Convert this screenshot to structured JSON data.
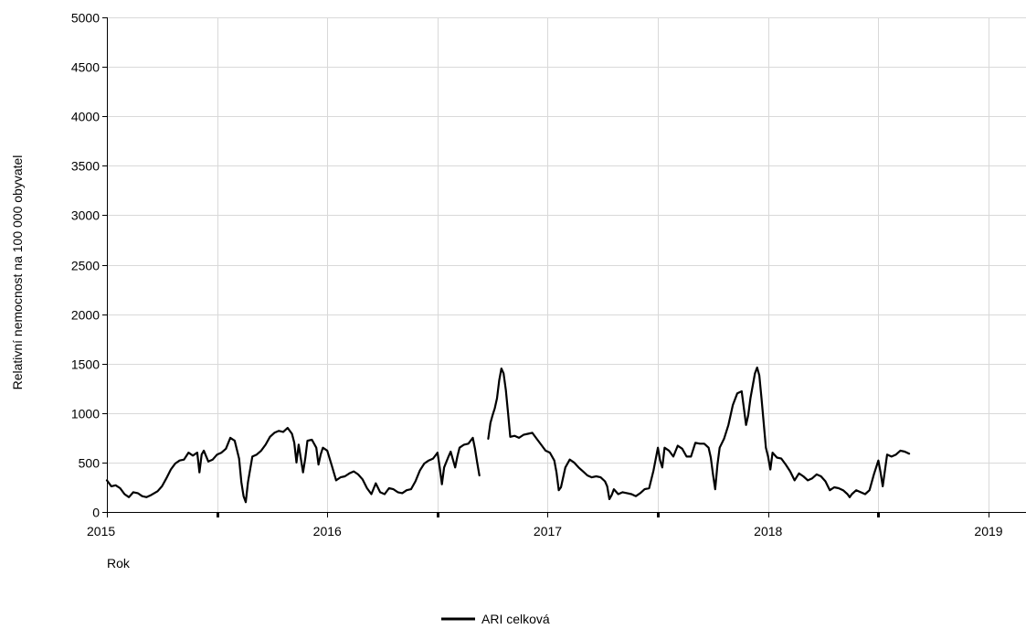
{
  "chart_data": {
    "type": "line",
    "xlabel": "Rok",
    "ylabel": "Relativní nemocnost na 100 000 obyvatel",
    "xlim": [
      2015,
      2019.17
    ],
    "ylim": [
      0,
      5000
    ],
    "y_ticks": [
      0,
      500,
      1000,
      1500,
      2000,
      2500,
      3000,
      3500,
      4000,
      4500,
      5000
    ],
    "x_ticks": [
      2015,
      2016,
      2017,
      2018,
      2019
    ],
    "grid": true,
    "legend": "bottom-center",
    "series": [
      {
        "name": "ARI celková",
        "color": "#000000",
        "segments": [
          [
            [
              2015.0,
              320
            ],
            [
              2015.02,
              260
            ],
            [
              2015.04,
              270
            ],
            [
              2015.06,
              240
            ],
            [
              2015.08,
              180
            ],
            [
              2015.1,
              150
            ],
            [
              2015.12,
              200
            ],
            [
              2015.14,
              190
            ],
            [
              2015.16,
              160
            ],
            [
              2015.18,
              150
            ],
            [
              2015.2,
              170
            ],
            [
              2015.23,
              210
            ],
            [
              2015.25,
              260
            ],
            [
              2015.27,
              340
            ],
            [
              2015.29,
              430
            ],
            [
              2015.31,
              490
            ],
            [
              2015.33,
              520
            ],
            [
              2015.35,
              530
            ],
            [
              2015.37,
              600
            ],
            [
              2015.39,
              570
            ],
            [
              2015.41,
              600
            ],
            [
              2015.42,
              400
            ],
            [
              2015.43,
              580
            ],
            [
              2015.44,
              620
            ],
            [
              2015.46,
              510
            ],
            [
              2015.48,
              530
            ],
            [
              2015.5,
              580
            ],
            [
              2015.52,
              600
            ],
            [
              2015.54,
              640
            ],
            [
              2015.56,
              750
            ],
            [
              2015.58,
              720
            ],
            [
              2015.6,
              540
            ],
            [
              2015.61,
              300
            ],
            [
              2015.62,
              160
            ],
            [
              2015.63,
              100
            ],
            [
              2015.64,
              300
            ],
            [
              2015.66,
              560
            ],
            [
              2015.68,
              580
            ],
            [
              2015.7,
              620
            ],
            [
              2015.72,
              680
            ],
            [
              2015.74,
              760
            ],
            [
              2015.76,
              800
            ],
            [
              2015.78,
              820
            ],
            [
              2015.8,
              810
            ],
            [
              2015.82,
              850
            ],
            [
              2015.84,
              790
            ],
            [
              2015.85,
              700
            ],
            [
              2015.86,
              500
            ],
            [
              2015.87,
              680
            ],
            [
              2015.88,
              540
            ],
            [
              2015.89,
              400
            ],
            [
              2015.9,
              540
            ],
            [
              2015.91,
              720
            ],
            [
              2015.93,
              730
            ],
            [
              2015.95,
              650
            ],
            [
              2015.96,
              480
            ],
            [
              2015.97,
              580
            ],
            [
              2015.98,
              650
            ],
            [
              2016.0,
              620
            ],
            [
              2016.02,
              470
            ],
            [
              2016.04,
              320
            ],
            [
              2016.06,
              350
            ],
            [
              2016.08,
              360
            ],
            [
              2016.1,
              390
            ],
            [
              2016.12,
              410
            ],
            [
              2016.14,
              380
            ],
            [
              2016.16,
              330
            ],
            [
              2016.18,
              240
            ],
            [
              2016.2,
              180
            ],
            [
              2016.22,
              290
            ],
            [
              2016.24,
              200
            ],
            [
              2016.26,
              180
            ],
            [
              2016.28,
              240
            ],
            [
              2016.3,
              230
            ],
            [
              2016.32,
              200
            ],
            [
              2016.34,
              190
            ],
            [
              2016.36,
              220
            ],
            [
              2016.38,
              230
            ],
            [
              2016.4,
              310
            ],
            [
              2016.42,
              420
            ],
            [
              2016.44,
              490
            ],
            [
              2016.46,
              520
            ],
            [
              2016.48,
              540
            ],
            [
              2016.5,
              600
            ],
            [
              2016.51,
              450
            ],
            [
              2016.52,
              280
            ],
            [
              2016.53,
              450
            ],
            [
              2016.55,
              560
            ],
            [
              2016.56,
              610
            ],
            [
              2016.58,
              450
            ],
            [
              2016.59,
              560
            ],
            [
              2016.6,
              650
            ],
            [
              2016.62,
              680
            ],
            [
              2016.64,
              690
            ],
            [
              2016.66,
              750
            ],
            [
              2016.67,
              640
            ],
            [
              2016.68,
              500
            ],
            [
              2016.69,
              370
            ]
          ],
          [
            [
              2016.73,
              740
            ],
            [
              2016.74,
              900
            ],
            [
              2016.75,
              980
            ],
            [
              2016.76,
              1050
            ],
            [
              2016.77,
              1150
            ],
            [
              2016.78,
              1330
            ],
            [
              2016.79,
              1450
            ],
            [
              2016.8,
              1400
            ],
            [
              2016.81,
              1230
            ],
            [
              2016.82,
              1000
            ],
            [
              2016.83,
              760
            ],
            [
              2016.85,
              770
            ],
            [
              2016.87,
              750
            ],
            [
              2016.89,
              780
            ],
            [
              2016.91,
              790
            ],
            [
              2016.93,
              800
            ],
            [
              2016.95,
              740
            ],
            [
              2016.97,
              680
            ],
            [
              2016.99,
              620
            ],
            [
              2017.01,
              600
            ],
            [
              2017.03,
              520
            ],
            [
              2017.04,
              400
            ],
            [
              2017.05,
              220
            ],
            [
              2017.06,
              250
            ],
            [
              2017.08,
              450
            ],
            [
              2017.1,
              530
            ],
            [
              2017.12,
              500
            ],
            [
              2017.14,
              450
            ],
            [
              2017.16,
              410
            ],
            [
              2017.18,
              370
            ],
            [
              2017.2,
              350
            ],
            [
              2017.22,
              360
            ],
            [
              2017.24,
              350
            ],
            [
              2017.26,
              310
            ],
            [
              2017.27,
              260
            ],
            [
              2017.28,
              130
            ],
            [
              2017.29,
              170
            ],
            [
              2017.3,
              230
            ],
            [
              2017.32,
              180
            ],
            [
              2017.34,
              200
            ],
            [
              2017.36,
              190
            ],
            [
              2017.38,
              180
            ],
            [
              2017.4,
              160
            ],
            [
              2017.42,
              190
            ],
            [
              2017.44,
              230
            ],
            [
              2017.46,
              240
            ],
            [
              2017.48,
              420
            ],
            [
              2017.5,
              650
            ],
            [
              2017.51,
              520
            ],
            [
              2017.52,
              450
            ],
            [
              2017.53,
              650
            ],
            [
              2017.55,
              620
            ],
            [
              2017.57,
              560
            ],
            [
              2017.59,
              670
            ],
            [
              2017.61,
              640
            ],
            [
              2017.63,
              560
            ],
            [
              2017.65,
              560
            ],
            [
              2017.67,
              700
            ],
            [
              2017.69,
              690
            ],
            [
              2017.71,
              690
            ],
            [
              2017.73,
              650
            ],
            [
              2017.74,
              550
            ],
            [
              2017.75,
              380
            ],
            [
              2017.76,
              230
            ],
            [
              2017.77,
              480
            ],
            [
              2017.78,
              650
            ],
            [
              2017.8,
              740
            ],
            [
              2017.82,
              880
            ],
            [
              2017.84,
              1080
            ],
            [
              2017.86,
              1200
            ],
            [
              2017.88,
              1220
            ],
            [
              2017.89,
              1050
            ],
            [
              2017.9,
              880
            ],
            [
              2017.91,
              980
            ],
            [
              2017.92,
              1150
            ],
            [
              2017.94,
              1400
            ],
            [
              2017.95,
              1460
            ],
            [
              2017.96,
              1380
            ],
            [
              2017.97,
              1150
            ],
            [
              2017.98,
              900
            ],
            [
              2017.99,
              650
            ],
            [
              2018.0,
              560
            ],
            [
              2018.01,
              430
            ],
            [
              2018.02,
              600
            ],
            [
              2018.04,
              550
            ],
            [
              2018.06,
              540
            ],
            [
              2018.08,
              480
            ],
            [
              2018.1,
              410
            ],
            [
              2018.12,
              320
            ],
            [
              2018.14,
              390
            ],
            [
              2018.16,
              360
            ],
            [
              2018.18,
              320
            ],
            [
              2018.2,
              340
            ],
            [
              2018.22,
              380
            ],
            [
              2018.24,
              360
            ],
            [
              2018.26,
              310
            ],
            [
              2018.28,
              220
            ],
            [
              2018.3,
              250
            ],
            [
              2018.32,
              240
            ],
            [
              2018.34,
              220
            ],
            [
              2018.36,
              180
            ],
            [
              2018.37,
              150
            ],
            [
              2018.38,
              180
            ],
            [
              2018.4,
              220
            ],
            [
              2018.42,
              200
            ],
            [
              2018.44,
              180
            ],
            [
              2018.46,
              220
            ],
            [
              2018.48,
              380
            ],
            [
              2018.5,
              520
            ],
            [
              2018.51,
              400
            ],
            [
              2018.52,
              260
            ],
            [
              2018.54,
              580
            ],
            [
              2018.56,
              560
            ],
            [
              2018.58,
              580
            ],
            [
              2018.6,
              620
            ],
            [
              2018.62,
              610
            ],
            [
              2018.64,
              590
            ]
          ]
        ]
      }
    ]
  }
}
